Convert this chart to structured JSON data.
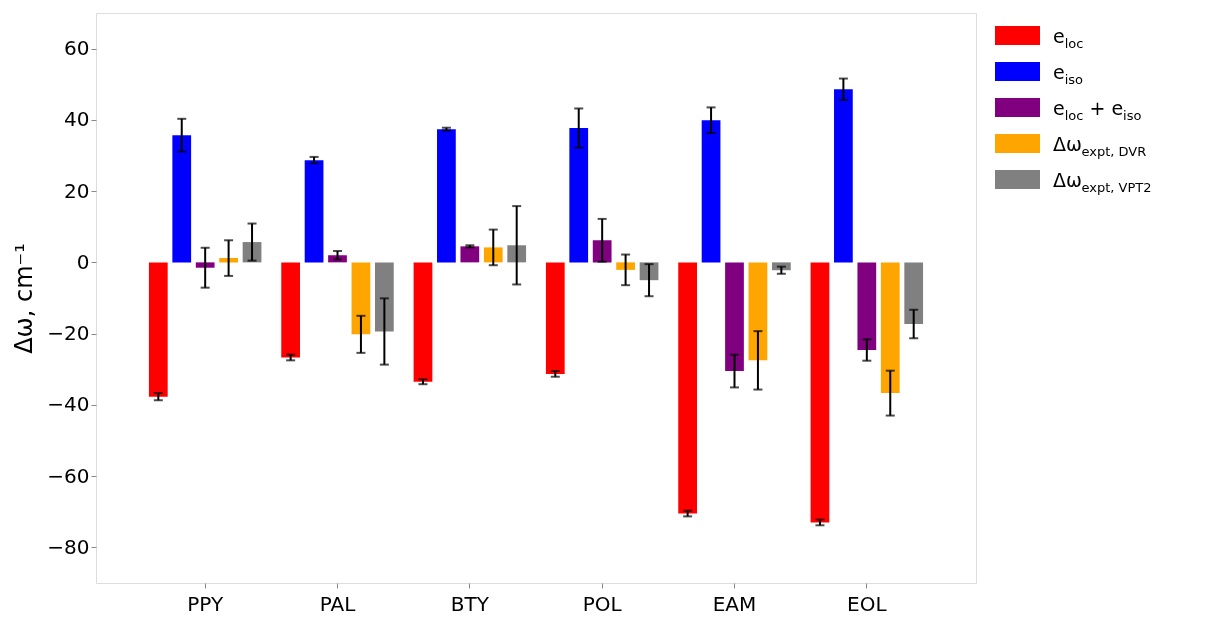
{
  "chart_data": {
    "type": "bar",
    "ylabel": "Δω, cm⁻¹",
    "categories": [
      "PPY",
      "PAL",
      "BTY",
      "POL",
      "EAM",
      "EOL"
    ],
    "series": [
      {
        "name": "e$_{loc}$",
        "color": "#ff0000",
        "values": [
          -37.7,
          -26.7,
          -33.5,
          -31.3,
          -70.5,
          -73.0
        ],
        "errors": [
          1.0,
          0.8,
          0.7,
          0.8,
          0.8,
          0.8
        ]
      },
      {
        "name": "e$_{iso}$",
        "color": "#0000ff",
        "values": [
          35.7,
          28.7,
          37.4,
          37.7,
          39.9,
          48.6
        ],
        "errors": [
          4.6,
          0.9,
          0.4,
          5.5,
          3.6,
          3.0
        ]
      },
      {
        "name": "e$_{loc}$ + e$_{iso}$",
        "color": "#800080",
        "values": [
          -1.5,
          2.0,
          4.5,
          6.2,
          -30.5,
          -24.6
        ],
        "errors": [
          5.6,
          1.2,
          0.3,
          6.0,
          4.6,
          3.0
        ]
      },
      {
        "name": "Δω$_{expt, DVR}$",
        "color": "#ffa500",
        "values": [
          1.2,
          -20.2,
          4.2,
          -2.1,
          -27.5,
          -36.7
        ],
        "errors": [
          5.0,
          5.2,
          5.0,
          4.3,
          8.2,
          6.3
        ]
      },
      {
        "name": "Δω$_{expt, VPT2}$",
        "color": "#808080",
        "values": [
          5.7,
          -19.4,
          4.8,
          -5.0,
          -2.2,
          -17.3
        ],
        "errors": [
          5.2,
          9.3,
          11.0,
          4.5,
          1.0,
          4.0
        ]
      }
    ],
    "ylim": [
      -90,
      70
    ],
    "yticks": [
      -80,
      -60,
      -40,
      -20,
      0,
      20,
      40,
      60
    ],
    "grid": false,
    "legend": "top right"
  }
}
